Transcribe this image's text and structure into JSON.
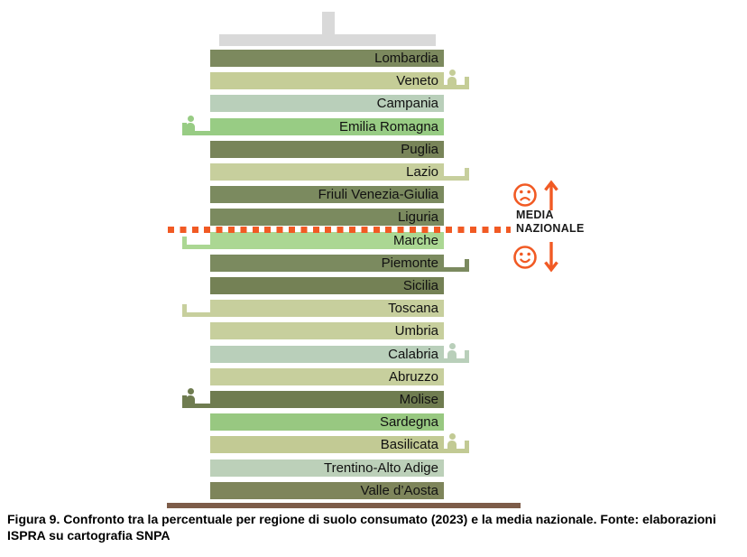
{
  "caption": {
    "line1": "Figura 9. Confronto tra la percentuale per regione di suolo consumato (2023) e la media nazionale. Fonte: elaborazioni",
    "line2": "ISPRA su cartografia SNPA"
  },
  "annotation": {
    "line1": "MEDIA",
    "line2": "NAZIONALE",
    "above_icon": "sad-face, up-arrow",
    "below_icon": "smiley-face, down-arrow"
  },
  "colors": {
    "accent": "#f15a24",
    "roof": "#d9d9d9",
    "ground": "#7d5c49",
    "label_text": "#111111"
  },
  "regions": [
    {
      "name": "Lombardia",
      "color": "#7c895e",
      "tail": null,
      "person": false
    },
    {
      "name": "Veneto",
      "color": "#c5cd97",
      "tail": "right",
      "person": true
    },
    {
      "name": "Campania",
      "color": "#b9cfba",
      "tail": null,
      "person": false
    },
    {
      "name": "Emilia Romagna",
      "color": "#98cc84",
      "tail": "left",
      "person": true
    },
    {
      "name": "Puglia",
      "color": "#788459",
      "tail": null,
      "person": false
    },
    {
      "name": "Lazio",
      "color": "#c7cf9d",
      "tail": "right",
      "person": false
    },
    {
      "name": "Friuli Venezia-Giulia",
      "color": "#7b8a5f",
      "tail": null,
      "person": false
    },
    {
      "name": "Liguria",
      "color": "#7b8a5f",
      "tail": null,
      "person": false
    },
    {
      "name": "Marche",
      "color": "#abd793",
      "tail": "left",
      "person": false
    },
    {
      "name": "Piemonte",
      "color": "#7b8a5f",
      "tail": "right",
      "person": false
    },
    {
      "name": "Sicilia",
      "color": "#748155",
      "tail": null,
      "person": false
    },
    {
      "name": "Toscana",
      "color": "#c7cf9d",
      "tail": "left",
      "person": false
    },
    {
      "name": "Umbria",
      "color": "#c7cf9d",
      "tail": null,
      "person": false
    },
    {
      "name": "Calabria",
      "color": "#b9cfba",
      "tail": "right",
      "person": true
    },
    {
      "name": "Abruzzo",
      "color": "#c7cf9d",
      "tail": null,
      "person": false
    },
    {
      "name": "Molise",
      "color": "#6f7c50",
      "tail": "left",
      "person": true
    },
    {
      "name": "Sardegna",
      "color": "#98c881",
      "tail": null,
      "person": false
    },
    {
      "name": "Basilicata",
      "color": "#c2ca94",
      "tail": "right",
      "person": true
    },
    {
      "name": "Trentino-Alto Adige",
      "color": "#bcd0b9",
      "tail": null,
      "person": false
    },
    {
      "name": "Valle d’Aosta",
      "color": "#7e855b",
      "tail": null,
      "person": false
    }
  ],
  "chart_data": {
    "type": "bar",
    "orientation": "horizontal",
    "title": "",
    "xlabel": "",
    "ylabel": "",
    "values_shown": false,
    "categories": [
      "Lombardia",
      "Veneto",
      "Campania",
      "Emilia Romagna",
      "Puglia",
      "Lazio",
      "Friuli Venezia-Giulia",
      "Liguria",
      "Marche",
      "Piemonte",
      "Sicilia",
      "Toscana",
      "Umbria",
      "Calabria",
      "Abruzzo",
      "Molise",
      "Sardegna",
      "Basilicata",
      "Trentino-Alto Adige",
      "Valle d’Aosta"
    ],
    "reference_line": {
      "label": "MEDIA NAZIONALE",
      "style": "dotted-orange",
      "between": [
        "Liguria",
        "Marche"
      ]
    },
    "above_reference": [
      "Lombardia",
      "Veneto",
      "Campania",
      "Emilia Romagna",
      "Puglia",
      "Lazio",
      "Friuli Venezia-Giulia",
      "Liguria"
    ],
    "below_reference": [
      "Marche",
      "Piemonte",
      "Sicilia",
      "Toscana",
      "Umbria",
      "Calabria",
      "Abruzzo",
      "Molise",
      "Sardegna",
      "Basilicata",
      "Trentino-Alto Adige",
      "Valle d’Aosta"
    ],
    "person_markers": [
      "Veneto",
      "Emilia Romagna",
      "Calabria",
      "Molise",
      "Basilicata"
    ]
  }
}
